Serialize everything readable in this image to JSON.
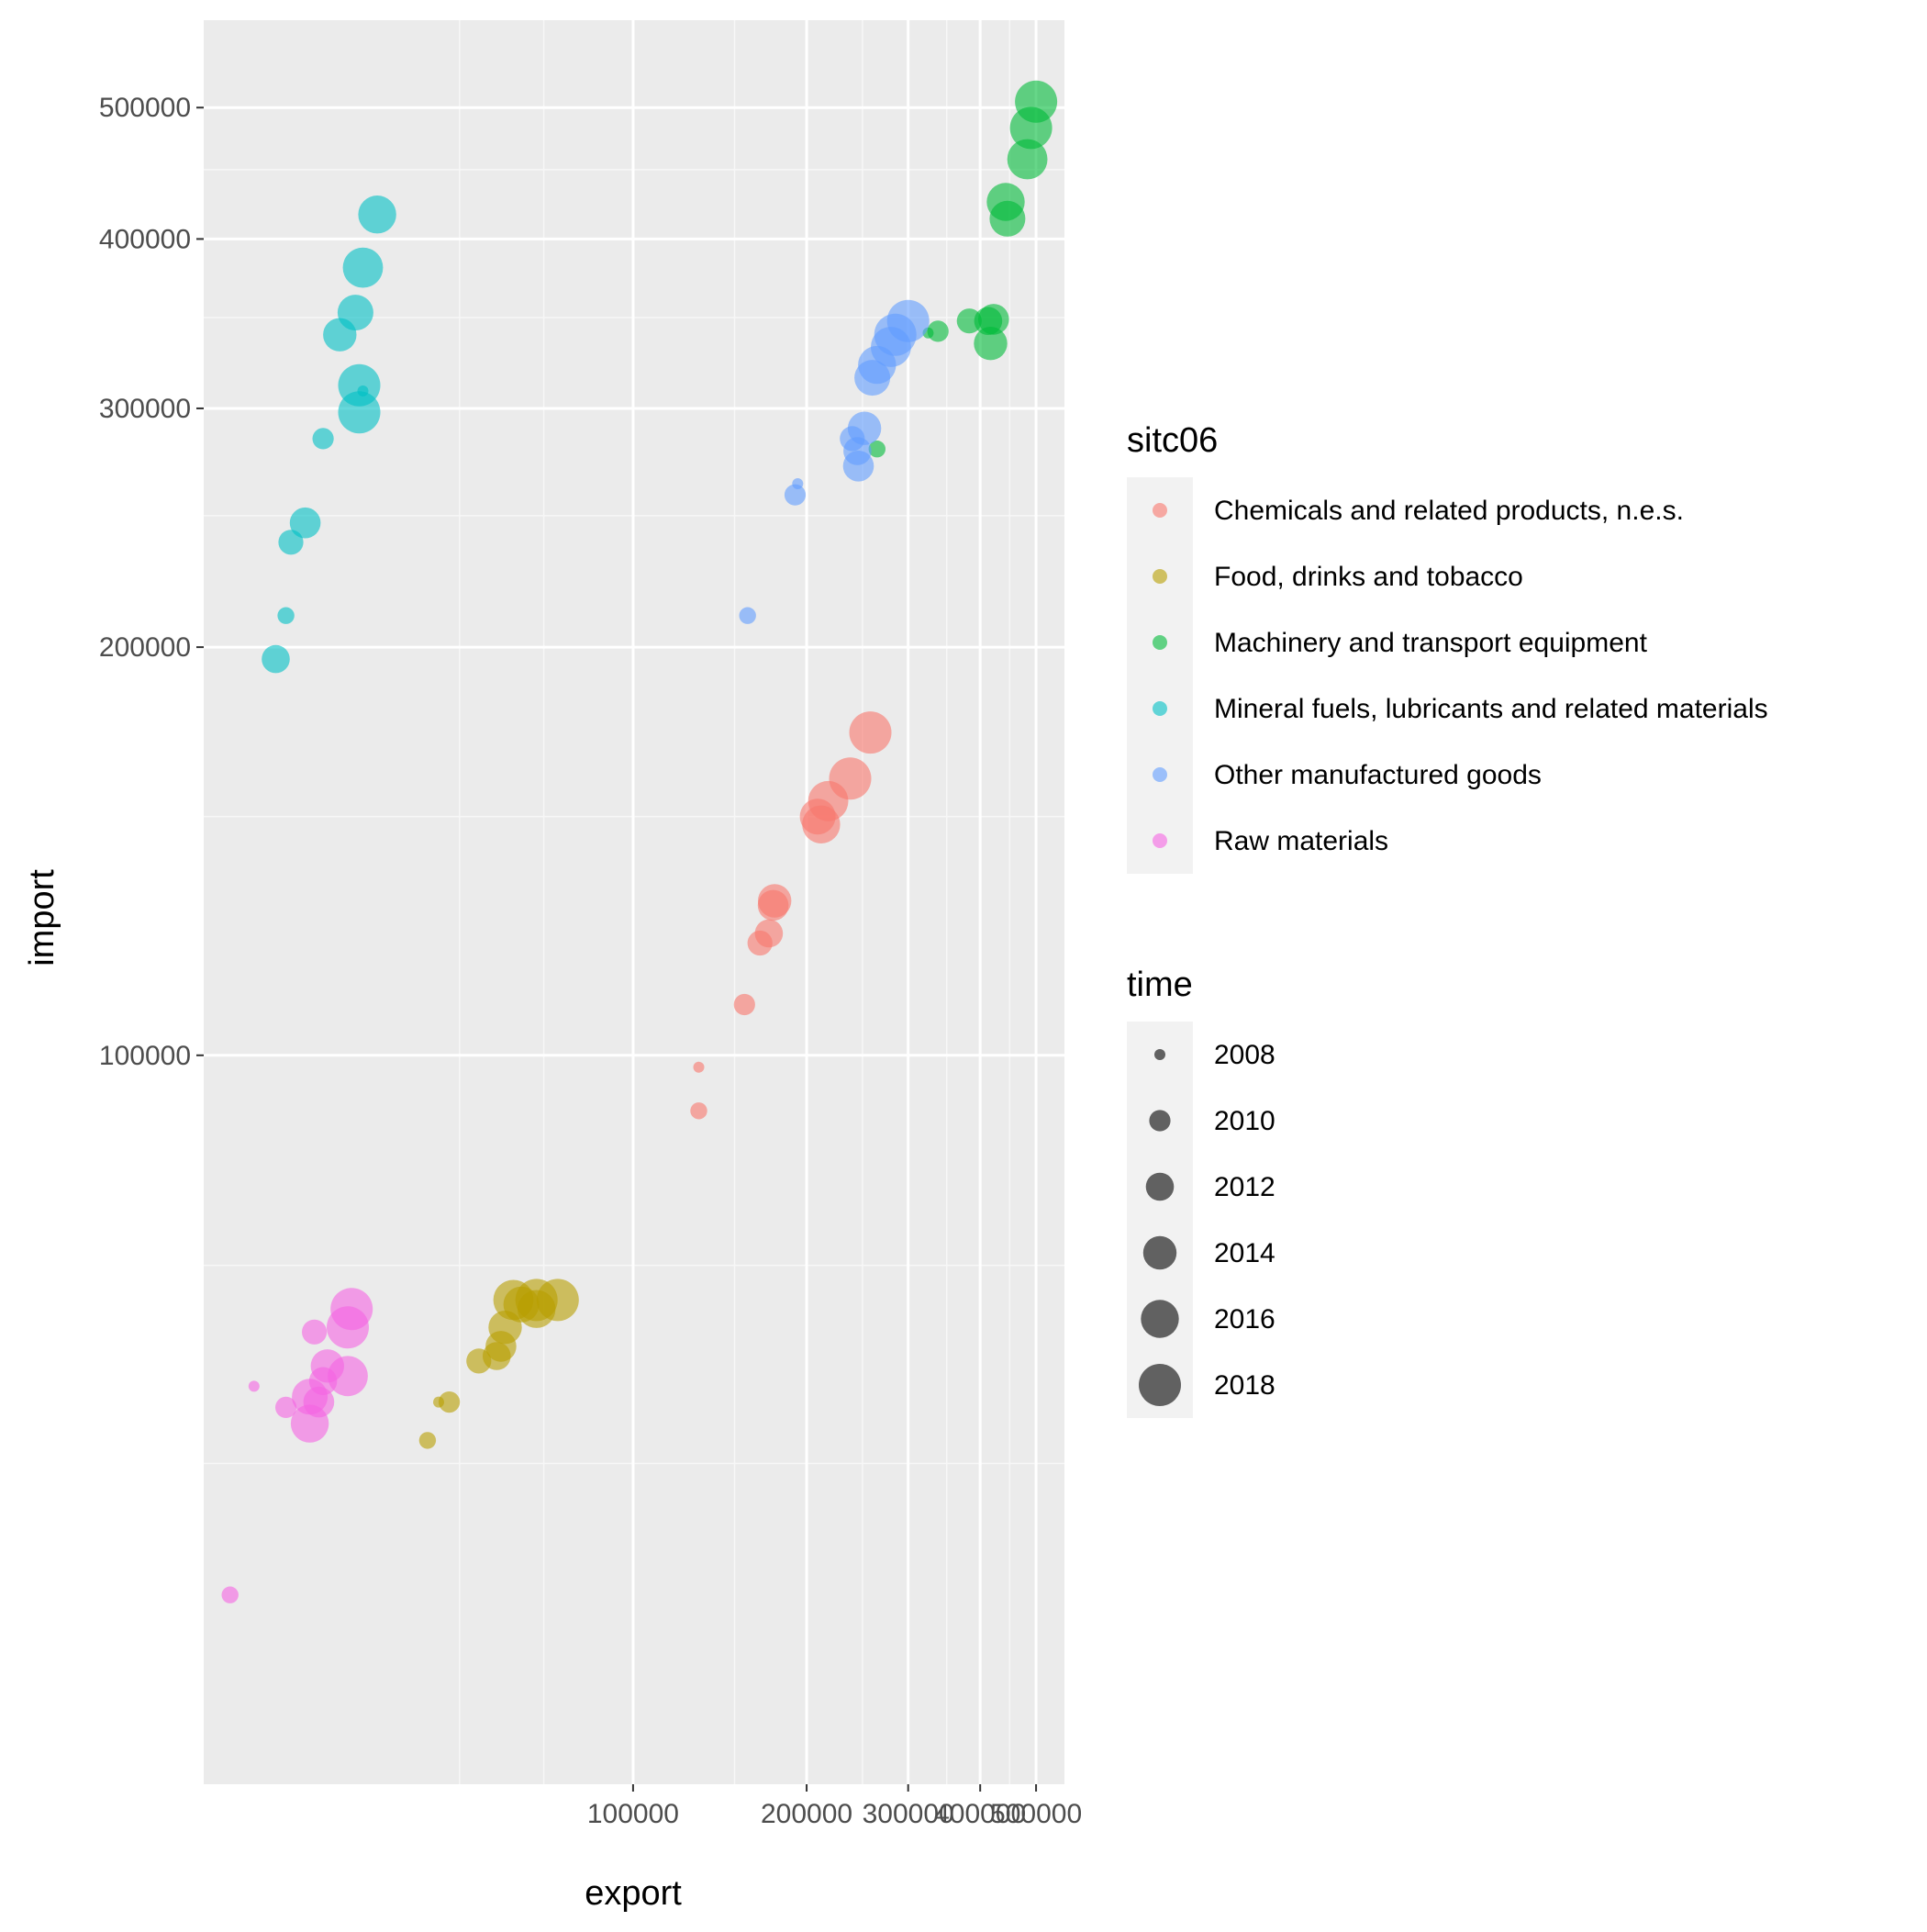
{
  "chart_data": {
    "type": "scatter",
    "xlabel": "export",
    "ylabel": "import",
    "x_scale": "log",
    "y_scale": "log",
    "xlim": [
      18000,
      560000
    ],
    "ylim": [
      29000,
      580000
    ],
    "x_ticks": [
      100000,
      200000,
      300000,
      400000,
      500000
    ],
    "x_tick_labels": [
      "100000",
      "200000",
      "300000",
      "400000",
      "500000"
    ],
    "x_minor_ticks": [
      50000,
      70000,
      150000,
      250000,
      350000,
      450000
    ],
    "y_ticks": [
      100000,
      200000,
      300000,
      400000,
      500000
    ],
    "y_tick_labels": [
      "100000",
      "200000",
      "300000",
      "400000",
      "500000"
    ],
    "y_minor_ticks": [
      50000,
      70000,
      150000,
      250000,
      350000,
      450000
    ],
    "grid": true,
    "background": "#ebebeb",
    "point_opacity": 0.6,
    "legend_placement": "right",
    "color_legend": {
      "title": "sitc06",
      "entries": [
        {
          "label": "Chemicals and related products, n.e.s.",
          "color": "#F8766D"
        },
        {
          "label": "Food, drinks and tobacco",
          "color": "#B79F00"
        },
        {
          "label": "Machinery and transport equipment",
          "color": "#00BA38"
        },
        {
          "label": "Mineral fuels, lubricants and related materials",
          "color": "#00BFC4"
        },
        {
          "label": "Other manufactured goods",
          "color": "#619CFF"
        },
        {
          "label": "Raw materials",
          "color": "#F564E3"
        }
      ]
    },
    "size_legend": {
      "title": "time",
      "entries": [
        "2008",
        "2010",
        "2012",
        "2014",
        "2016",
        "2018"
      ],
      "values": [
        2008,
        2010,
        2012,
        2014,
        2016,
        2018
      ]
    },
    "series": [
      {
        "name": "Chemicals and related products, n.e.s.",
        "color": "#F8766D",
        "points": [
          {
            "x": 130000,
            "y": 98000,
            "time": 2008
          },
          {
            "x": 130000,
            "y": 91000,
            "time": 2009
          },
          {
            "x": 156000,
            "y": 109000,
            "time": 2010
          },
          {
            "x": 166000,
            "y": 121000,
            "time": 2011
          },
          {
            "x": 172000,
            "y": 123000,
            "time": 2012
          },
          {
            "x": 175000,
            "y": 129000,
            "time": 2013
          },
          {
            "x": 176000,
            "y": 130000,
            "time": 2014
          },
          {
            "x": 209000,
            "y": 150000,
            "time": 2015
          },
          {
            "x": 212000,
            "y": 148000,
            "time": 2016
          },
          {
            "x": 218000,
            "y": 154000,
            "time": 2017
          },
          {
            "x": 238000,
            "y": 160000,
            "time": 2018
          },
          {
            "x": 258000,
            "y": 173000,
            "time": 2019
          }
        ]
      },
      {
        "name": "Food, drinks and tobacco",
        "color": "#B79F00",
        "points": [
          {
            "x": 46000,
            "y": 55500,
            "time": 2008
          },
          {
            "x": 44000,
            "y": 52000,
            "time": 2009
          },
          {
            "x": 48000,
            "y": 55500,
            "time": 2010
          },
          {
            "x": 54000,
            "y": 59500,
            "time": 2011
          },
          {
            "x": 58000,
            "y": 60000,
            "time": 2012
          },
          {
            "x": 59000,
            "y": 61000,
            "time": 2013
          },
          {
            "x": 60000,
            "y": 63000,
            "time": 2014
          },
          {
            "x": 64000,
            "y": 65500,
            "time": 2015
          },
          {
            "x": 68000,
            "y": 65000,
            "time": 2016
          },
          {
            "x": 62000,
            "y": 66000,
            "time": 2017
          },
          {
            "x": 68000,
            "y": 66000,
            "time": 2018
          },
          {
            "x": 74000,
            "y": 66000,
            "time": 2019
          }
        ]
      },
      {
        "name": "Machinery and transport equipment",
        "color": "#00BA38",
        "points": [
          {
            "x": 325000,
            "y": 341000,
            "time": 2008
          },
          {
            "x": 265000,
            "y": 280000,
            "time": 2009
          },
          {
            "x": 338000,
            "y": 342000,
            "time": 2010
          },
          {
            "x": 383000,
            "y": 348000,
            "time": 2011
          },
          {
            "x": 413000,
            "y": 348000,
            "time": 2012
          },
          {
            "x": 422000,
            "y": 349000,
            "time": 2013
          },
          {
            "x": 417000,
            "y": 335000,
            "time": 2014
          },
          {
            "x": 446000,
            "y": 414000,
            "time": 2015
          },
          {
            "x": 443000,
            "y": 426000,
            "time": 2016
          },
          {
            "x": 483000,
            "y": 458000,
            "time": 2017
          },
          {
            "x": 490000,
            "y": 483000,
            "time": 2018
          },
          {
            "x": 500000,
            "y": 505000,
            "time": 2019
          }
        ]
      },
      {
        "name": "Mineral fuels, lubricants and related materials",
        "color": "#00BFC4",
        "points": [
          {
            "x": 34000,
            "y": 309000,
            "time": 2008
          },
          {
            "x": 25000,
            "y": 211000,
            "time": 2009
          },
          {
            "x": 29000,
            "y": 285000,
            "time": 2010
          },
          {
            "x": 25500,
            "y": 239000,
            "time": 2011
          },
          {
            "x": 24000,
            "y": 196000,
            "time": 2012
          },
          {
            "x": 27000,
            "y": 247000,
            "time": 2013
          },
          {
            "x": 31000,
            "y": 340000,
            "time": 2014
          },
          {
            "x": 33000,
            "y": 353000,
            "time": 2015
          },
          {
            "x": 36000,
            "y": 417000,
            "time": 2016
          },
          {
            "x": 34000,
            "y": 381000,
            "time": 2017
          },
          {
            "x": 33500,
            "y": 312000,
            "time": 2018
          },
          {
            "x": 33500,
            "y": 298000,
            "time": 2019
          }
        ]
      },
      {
        "name": "Other manufactured goods",
        "color": "#619CFF",
        "points": [
          {
            "x": 193000,
            "y": 264000,
            "time": 2008
          },
          {
            "x": 158000,
            "y": 211000,
            "time": 2009
          },
          {
            "x": 191000,
            "y": 259000,
            "time": 2010
          },
          {
            "x": 240000,
            "y": 285000,
            "time": 2011
          },
          {
            "x": 245000,
            "y": 279000,
            "time": 2012
          },
          {
            "x": 246000,
            "y": 272000,
            "time": 2013
          },
          {
            "x": 252000,
            "y": 290000,
            "time": 2014
          },
          {
            "x": 260000,
            "y": 316000,
            "time": 2015
          },
          {
            "x": 265000,
            "y": 323000,
            "time": 2016
          },
          {
            "x": 280000,
            "y": 333000,
            "time": 2017
          },
          {
            "x": 285000,
            "y": 340000,
            "time": 2018
          },
          {
            "x": 300000,
            "y": 348000,
            "time": 2019
          }
        ]
      },
      {
        "name": "Raw materials",
        "color": "#F564E3",
        "points": [
          {
            "x": 22000,
            "y": 57000,
            "time": 2008
          },
          {
            "x": 20000,
            "y": 40000,
            "time": 2009
          },
          {
            "x": 25000,
            "y": 55000,
            "time": 2010
          },
          {
            "x": 28000,
            "y": 62500,
            "time": 2011
          },
          {
            "x": 29000,
            "y": 57500,
            "time": 2012
          },
          {
            "x": 28500,
            "y": 55500,
            "time": 2013
          },
          {
            "x": 29500,
            "y": 59000,
            "time": 2014
          },
          {
            "x": 27500,
            "y": 56000,
            "time": 2015
          },
          {
            "x": 27500,
            "y": 53500,
            "time": 2016
          },
          {
            "x": 32000,
            "y": 58000,
            "time": 2017
          },
          {
            "x": 32000,
            "y": 63000,
            "time": 2018
          },
          {
            "x": 32500,
            "y": 65000,
            "time": 2019
          }
        ]
      }
    ]
  }
}
